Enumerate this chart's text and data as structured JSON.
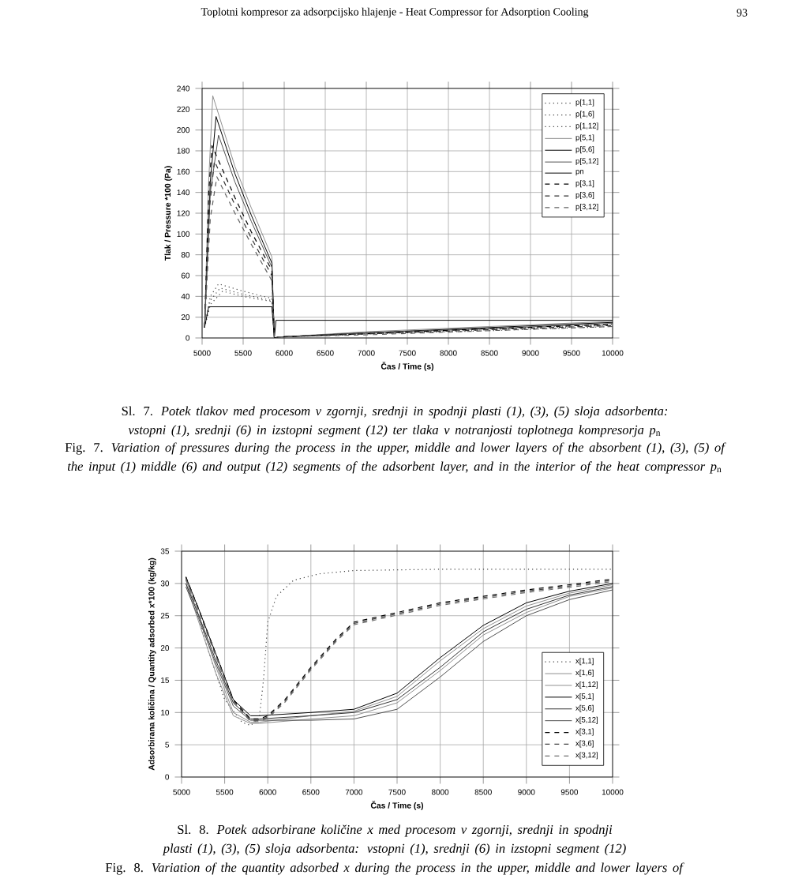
{
  "chart_data": [
    {
      "type": "line",
      "xlabel": "Čas / Time (s)",
      "ylabel": "Tlak / Pressure *100 (Pa)",
      "xlim": [
        5000,
        10000
      ],
      "ylim": [
        0,
        240
      ],
      "xticks": [
        5000,
        5500,
        6000,
        6500,
        7000,
        7500,
        8000,
        8500,
        9000,
        9500,
        10000
      ],
      "yticks": [
        0,
        20,
        40,
        60,
        80,
        100,
        120,
        140,
        160,
        180,
        200,
        220,
        240
      ],
      "grid": true,
      "legend": "top right",
      "marker": "none",
      "annotations": [
        "Toplotni kompresor za adsorpcijsko hlajenje - Heat Compressor for Adsorption Cooling",
        "93",
        "Sl. 7. *Potek tlakov med procesom v zgornji, srednji in spodnji plasti (1), (3), (5) sloja adsorbenta: vstopni (1), srednji (6) in izstopni segment (12) ter tlaka v notranjosti toplotnega kompresorja p*$_{n}$",
        "Fig. 7. *Variation of pressures during the process in the upper, middle and lower layers of the absorbent (1), (3), (5) of the input (1) middle (6) and output (12) segments of the adsorbent layer, and in the interior of the heat compressor p*$_{n}$"
      ],
      "series": [
        {
          "name": "p[1,1]",
          "color": "#404040",
          "line_style": "dotted",
          "x": [
            5030,
            5100,
            5200,
            5500,
            5850,
            5880,
            5950,
            7000,
            8500,
            10000
          ],
          "values": [
            10,
            40,
            52,
            45,
            38,
            0,
            1,
            5,
            9,
            13
          ]
        },
        {
          "name": "p[1,6]",
          "color": "#404040",
          "line_style": "dotted",
          "x": [
            5030,
            5100,
            5220,
            5500,
            5850,
            5880,
            5950,
            7000,
            8500,
            10000
          ],
          "values": [
            10,
            36,
            48,
            42,
            36,
            0,
            1,
            4,
            8,
            12
          ]
        },
        {
          "name": "p[1,12]",
          "color": "#404040",
          "line_style": "dotted",
          "x": [
            5030,
            5100,
            5250,
            5500,
            5850,
            5880,
            5950,
            7000,
            8500,
            10000
          ],
          "values": [
            10,
            32,
            45,
            40,
            35,
            0,
            1,
            4,
            7,
            11
          ]
        },
        {
          "name": "p[5,1]",
          "color": "#909090",
          "line_style": "solid",
          "x": [
            5030,
            5080,
            5130,
            5400,
            5600,
            5850,
            5880,
            5950,
            7000,
            8500,
            10000
          ],
          "values": [
            10,
            150,
            233,
            165,
            125,
            78,
            0,
            1,
            6,
            11,
            16
          ]
        },
        {
          "name": "p[5,6]",
          "color": "#000000",
          "line_style": "solid",
          "x": [
            5030,
            5100,
            5170,
            5400,
            5600,
            5850,
            5880,
            5950,
            7000,
            8500,
            10000
          ],
          "values": [
            10,
            150,
            213,
            158,
            118,
            72,
            0,
            1,
            5,
            10,
            15
          ]
        },
        {
          "name": "p[5,12]",
          "color": "#505050",
          "line_style": "solid",
          "x": [
            5030,
            5100,
            5200,
            5400,
            5600,
            5850,
            5880,
            5950,
            7000,
            8500,
            10000
          ],
          "values": [
            10,
            140,
            195,
            150,
            112,
            68,
            0,
            1,
            5,
            9,
            14
          ]
        },
        {
          "name": "pn",
          "color": "#000000",
          "line_style": "solid",
          "x": [
            5030,
            5080,
            5850,
            5880,
            5900,
            10000
          ],
          "values": [
            10,
            30,
            30,
            0,
            17,
            17
          ]
        },
        {
          "name": "p[3,1]",
          "color": "#000000",
          "line_style": "dashed",
          "x": [
            5030,
            5080,
            5120,
            5400,
            5600,
            5850,
            5880,
            5950,
            7000,
            8500,
            10000
          ],
          "values": [
            10,
            140,
            185,
            135,
            102,
            65,
            0,
            1,
            4,
            9,
            13
          ]
        },
        {
          "name": "p[3,6]",
          "color": "#303030",
          "line_style": "dashed",
          "x": [
            5030,
            5090,
            5150,
            5400,
            5600,
            5850,
            5880,
            5950,
            7000,
            8500,
            10000
          ],
          "values": [
            10,
            125,
            170,
            128,
            96,
            60,
            0,
            1,
            4,
            8,
            12
          ]
        },
        {
          "name": "p[3,12]",
          "color": "#606060",
          "line_style": "dashed",
          "x": [
            5030,
            5100,
            5180,
            5400,
            5600,
            5850,
            5880,
            5950,
            7000,
            8500,
            10000
          ],
          "values": [
            10,
            115,
            155,
            120,
            90,
            55,
            0,
            1,
            3,
            7,
            11
          ]
        }
      ]
    },
    {
      "type": "line",
      "xlabel": "Čas / Time (s)",
      "ylabel": "Adsorbirana količina / Quantity adsorbed x*100 (kg/kg)",
      "xlim": [
        5000,
        10000
      ],
      "ylim": [
        0,
        35
      ],
      "xticks": [
        5000,
        5500,
        6000,
        6500,
        7000,
        7500,
        8000,
        8500,
        9000,
        9500,
        10000
      ],
      "yticks": [
        0,
        5,
        10,
        15,
        20,
        25,
        30,
        35
      ],
      "grid": true,
      "legend": "bottom right",
      "marker": "none",
      "annotations": [
        "Sl. 8. *Potek adsorbirane količine x med procesom v zgornji, srednji in spodnji plasti (1), (3), (5) sloja adsorbenta: vstopni (1), srednji (6) in izstopni segment (12)*",
        "Fig. 8. *Variation of the quantity adsorbed x during the process in the upper, middle and lower layers of*"
      ],
      "series": [
        {
          "name": "x[1,1]",
          "color": "#404040",
          "line_style": "dotted",
          "x": [
            5050,
            5150,
            5300,
            5500,
            5700,
            5800,
            5900,
            5950,
            6000,
            6100,
            6300,
            6600,
            7000,
            8000,
            10000
          ],
          "values": [
            31,
            27,
            20,
            12,
            8.5,
            8,
            9,
            15,
            24,
            28,
            30.5,
            31.5,
            32,
            32.2,
            32.2
          ]
        },
        {
          "name": "x[1,6]",
          "color": "#909090",
          "line_style": "solid",
          "x": [
            5050,
            5200,
            5400,
            5600,
            5800,
            5900,
            6500,
            7000,
            7500,
            8000,
            8500,
            9000,
            9500,
            10000
          ],
          "values": [
            30.5,
            25,
            17,
            10,
            8.5,
            8.5,
            9.5,
            10.2,
            12.5,
            18,
            23,
            26.5,
            28.5,
            29.8
          ]
        },
        {
          "name": "x[1,12]",
          "color": "#909090",
          "line_style": "solid",
          "x": [
            5050,
            5200,
            5400,
            5600,
            5800,
            5900,
            6500,
            7000,
            7500,
            8000,
            8500,
            9000,
            9500,
            10000
          ],
          "values": [
            30,
            24,
            16,
            9.5,
            8.3,
            8.3,
            9,
            9.5,
            11.5,
            16.5,
            22,
            25.5,
            28,
            29.3
          ]
        },
        {
          "name": "x[5,1]",
          "color": "#000000",
          "line_style": "solid",
          "x": [
            5050,
            5200,
            5400,
            5600,
            5800,
            5900,
            6500,
            7000,
            7500,
            8000,
            8500,
            9000,
            9500,
            10000
          ],
          "values": [
            31,
            26,
            19,
            12,
            9.5,
            9.5,
            10,
            10.5,
            13,
            18.5,
            23.5,
            27,
            28.8,
            30
          ]
        },
        {
          "name": "x[5,6]",
          "color": "#303030",
          "line_style": "solid",
          "x": [
            5050,
            5200,
            5400,
            5600,
            5800,
            5900,
            6500,
            7000,
            7500,
            8000,
            8500,
            9000,
            9500,
            10000
          ],
          "values": [
            30,
            25,
            18,
            11.5,
            9,
            9,
            9.5,
            10,
            12,
            17,
            22.5,
            26,
            28.2,
            29.5
          ]
        },
        {
          "name": "x[5,12]",
          "color": "#505050",
          "line_style": "solid",
          "x": [
            5050,
            5200,
            5400,
            5600,
            5800,
            5900,
            6500,
            7000,
            7500,
            8000,
            8500,
            9000,
            9500,
            10000
          ],
          "values": [
            29.5,
            24.5,
            17.5,
            11,
            8.8,
            8.8,
            8.8,
            9,
            10.5,
            15.5,
            21,
            25,
            27.5,
            29
          ]
        },
        {
          "name": "x[3,1]",
          "color": "#000000",
          "line_style": "dashed",
          "x": [
            5050,
            5200,
            5400,
            5600,
            5800,
            5900,
            6000,
            6200,
            6500,
            6800,
            7000,
            7500,
            8000,
            8500,
            9000,
            9500,
            10000
          ],
          "values": [
            31,
            26,
            19,
            12,
            9,
            9,
            9.5,
            12,
            17,
            21.5,
            24,
            25.5,
            27,
            28,
            29,
            29.8,
            30.7
          ]
        },
        {
          "name": "x[3,6]",
          "color": "#404040",
          "line_style": "dashed",
          "x": [
            5050,
            5200,
            5400,
            5600,
            5800,
            5900,
            6000,
            6200,
            6500,
            6800,
            7000,
            7500,
            8000,
            8500,
            9000,
            9500,
            10000
          ],
          "values": [
            30.8,
            25.8,
            18.8,
            11.8,
            8.8,
            8.8,
            9.3,
            11.8,
            16.8,
            21.3,
            23.8,
            25.3,
            26.8,
            27.8,
            28.8,
            29.6,
            30.5
          ]
        },
        {
          "name": "x[3,12]",
          "color": "#707070",
          "line_style": "dashed",
          "x": [
            5050,
            5200,
            5400,
            5600,
            5800,
            5900,
            6000,
            6200,
            6500,
            6800,
            7000,
            7500,
            8000,
            8500,
            9000,
            9500,
            10000
          ],
          "values": [
            30.6,
            25.6,
            18.6,
            11.6,
            8.6,
            8.6,
            9.1,
            11.6,
            16.6,
            21.1,
            23.6,
            25.1,
            26.6,
            27.6,
            28.6,
            29.4,
            30.3
          ]
        }
      ]
    }
  ]
}
